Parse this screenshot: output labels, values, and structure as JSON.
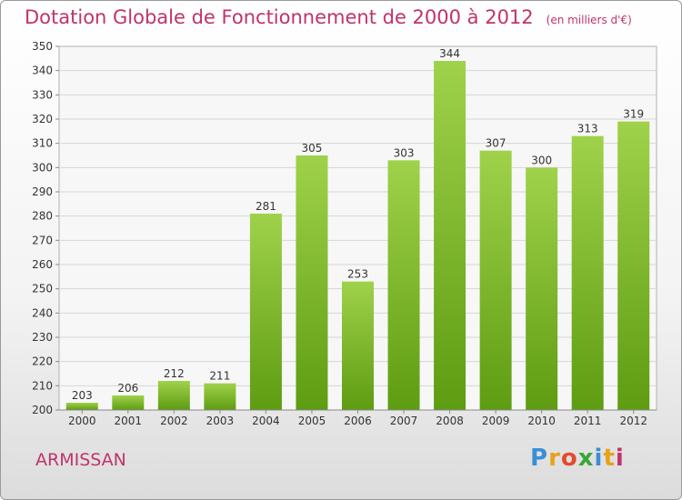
{
  "header": {
    "title": "Dotation Globale de Fonctionnement de 2000 à 2012",
    "unit": "(en milliers d'€)"
  },
  "footer": {
    "commune": "ARMISSAN",
    "logo": [
      "P",
      "r",
      "o",
      "x",
      "i",
      "t",
      "i"
    ]
  },
  "colors": {
    "bar_top": "#9fd24a",
    "bar_bottom": "#5e9c12",
    "title": "#c0336b",
    "grid": "#d6d6d6"
  },
  "chart_data": {
    "type": "bar",
    "title": "Dotation Globale de Fonctionnement de 2000 à 2012",
    "xlabel": "",
    "ylabel": "",
    "categories": [
      "2000",
      "2001",
      "2002",
      "2003",
      "2004",
      "2005",
      "2006",
      "2007",
      "2008",
      "2009",
      "2010",
      "2011",
      "2012"
    ],
    "values": [
      203,
      206,
      212,
      211,
      281,
      305,
      253,
      303,
      344,
      307,
      300,
      313,
      319
    ],
    "ylim": [
      200,
      350
    ],
    "ytick_step": 10,
    "grid": true,
    "legend": "none"
  }
}
